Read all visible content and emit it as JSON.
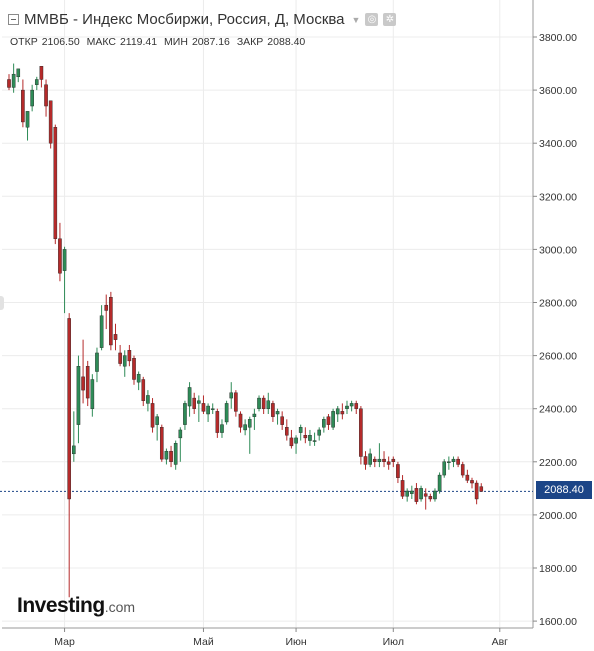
{
  "header": {
    "title": "ММВБ - Индекс Мосбиржи, Россия, Д, Москва",
    "icons": [
      "collapse-icon",
      "dropdown-icon",
      "settings-icon",
      "gear-icon"
    ]
  },
  "ohlc": {
    "open_label": "ОТКР",
    "open": "2106.50",
    "high_label": "МАКС",
    "high": "2119.41",
    "low_label": "МИН",
    "low": "2087.16",
    "close_label": "ЗАКР",
    "close": "2088.40"
  },
  "logo": {
    "main": "Investing",
    "suffix": ".com"
  },
  "current_price": "2088.40",
  "colors": {
    "up": "#2e8b57",
    "down": "#b52a2a",
    "price_line": "#1c4587",
    "grid": "#ececec"
  },
  "chart_data": {
    "type": "candlestick",
    "ylim": [
      1620,
      3910
    ],
    "y_ticks": [
      "3800.00",
      "3600.00",
      "3400.00",
      "3200.00",
      "3000.00",
      "2800.00",
      "2600.00",
      "2400.00",
      "2200.00",
      "2000.00",
      "1800.00",
      "1600.00"
    ],
    "x_ticks": [
      {
        "label": "Мар",
        "index": 12
      },
      {
        "label": "Май",
        "index": 42
      },
      {
        "label": "Июн",
        "index": 62
      },
      {
        "label": "Июл",
        "index": 83
      },
      {
        "label": "Авг",
        "index": 106
      }
    ],
    "current": 2088.4,
    "candles": [
      [
        3640,
        3660,
        3600,
        3610
      ],
      [
        3610,
        3700,
        3590,
        3660
      ],
      [
        3650,
        3680,
        3630,
        3680
      ],
      [
        3600,
        3640,
        3460,
        3480
      ],
      [
        3460,
        3520,
        3410,
        3520
      ],
      [
        3540,
        3620,
        3520,
        3600
      ],
      [
        3620,
        3650,
        3600,
        3640
      ],
      [
        3690,
        3690,
        3610,
        3640
      ],
      [
        3620,
        3640,
        3500,
        3540
      ],
      [
        3560,
        3560,
        3380,
        3400
      ],
      [
        3460,
        3470,
        3020,
        3040
      ],
      [
        3040,
        3100,
        2880,
        2910
      ],
      [
        2920,
        3010,
        2760,
        3000
      ],
      [
        2740,
        2760,
        1690,
        2060
      ],
      [
        2230,
        2390,
        2200,
        2260
      ],
      [
        2340,
        2600,
        2270,
        2560
      ],
      [
        2520,
        2660,
        2420,
        2470
      ],
      [
        2560,
        2580,
        2410,
        2440
      ],
      [
        2400,
        2530,
        2370,
        2510
      ],
      [
        2540,
        2630,
        2500,
        2610
      ],
      [
        2630,
        2790,
        2620,
        2750
      ],
      [
        2790,
        2830,
        2700,
        2770
      ],
      [
        2820,
        2840,
        2620,
        2640
      ],
      [
        2680,
        2720,
        2620,
        2660
      ],
      [
        2610,
        2640,
        2560,
        2570
      ],
      [
        2560,
        2620,
        2520,
        2600
      ],
      [
        2620,
        2640,
        2560,
        2580
      ],
      [
        2590,
        2600,
        2490,
        2510
      ],
      [
        2500,
        2540,
        2470,
        2530
      ],
      [
        2510,
        2520,
        2410,
        2430
      ],
      [
        2420,
        2470,
        2390,
        2450
      ],
      [
        2420,
        2440,
        2310,
        2330
      ],
      [
        2340,
        2380,
        2280,
        2370
      ],
      [
        2330,
        2340,
        2200,
        2210
      ],
      [
        2210,
        2250,
        2190,
        2240
      ],
      [
        2240,
        2260,
        2180,
        2200
      ],
      [
        2190,
        2280,
        2170,
        2270
      ],
      [
        2290,
        2330,
        2200,
        2320
      ],
      [
        2340,
        2430,
        2320,
        2420
      ],
      [
        2410,
        2500,
        2370,
        2480
      ],
      [
        2440,
        2460,
        2380,
        2400
      ],
      [
        2420,
        2450,
        2350,
        2430
      ],
      [
        2420,
        2450,
        2380,
        2390
      ],
      [
        2380,
        2420,
        2350,
        2410
      ],
      [
        2400,
        2420,
        2380,
        2400
      ],
      [
        2390,
        2400,
        2290,
        2310
      ],
      [
        2310,
        2360,
        2290,
        2340
      ],
      [
        2350,
        2430,
        2340,
        2420
      ],
      [
        2440,
        2500,
        2400,
        2460
      ],
      [
        2460,
        2470,
        2370,
        2390
      ],
      [
        2380,
        2390,
        2310,
        2330
      ],
      [
        2320,
        2360,
        2300,
        2340
      ],
      [
        2330,
        2370,
        2230,
        2360
      ],
      [
        2370,
        2400,
        2320,
        2380
      ],
      [
        2400,
        2450,
        2390,
        2440
      ],
      [
        2440,
        2450,
        2380,
        2400
      ],
      [
        2400,
        2460,
        2380,
        2430
      ],
      [
        2420,
        2430,
        2350,
        2370
      ],
      [
        2380,
        2400,
        2340,
        2390
      ],
      [
        2370,
        2390,
        2320,
        2340
      ],
      [
        2330,
        2360,
        2280,
        2300
      ],
      [
        2290,
        2320,
        2250,
        2260
      ],
      [
        2270,
        2300,
        2230,
        2290
      ],
      [
        2310,
        2340,
        2280,
        2330
      ],
      [
        2300,
        2330,
        2270,
        2290
      ],
      [
        2280,
        2320,
        2260,
        2300
      ],
      [
        2280,
        2310,
        2260,
        2280
      ],
      [
        2300,
        2330,
        2280,
        2320
      ],
      [
        2330,
        2370,
        2310,
        2360
      ],
      [
        2370,
        2380,
        2320,
        2340
      ],
      [
        2330,
        2400,
        2320,
        2390
      ],
      [
        2380,
        2410,
        2350,
        2400
      ],
      [
        2390,
        2420,
        2360,
        2380
      ],
      [
        2400,
        2430,
        2380,
        2410
      ],
      [
        2410,
        2430,
        2390,
        2420
      ],
      [
        2420,
        2430,
        2380,
        2400
      ],
      [
        2400,
        2410,
        2190,
        2220
      ],
      [
        2220,
        2240,
        2170,
        2190
      ],
      [
        2190,
        2250,
        2180,
        2230
      ],
      [
        2210,
        2220,
        2180,
        2200
      ],
      [
        2200,
        2270,
        2180,
        2210
      ],
      [
        2210,
        2240,
        2180,
        2200
      ],
      [
        2200,
        2220,
        2170,
        2190
      ],
      [
        2210,
        2220,
        2180,
        2200
      ],
      [
        2190,
        2200,
        2120,
        2140
      ],
      [
        2130,
        2150,
        2060,
        2070
      ],
      [
        2070,
        2100,
        2050,
        2090
      ],
      [
        2080,
        2110,
        2060,
        2090
      ],
      [
        2100,
        2120,
        2040,
        2050
      ],
      [
        2060,
        2110,
        2050,
        2100
      ],
      [
        2080,
        2100,
        2020,
        2070
      ],
      [
        2070,
        2080,
        2050,
        2060
      ],
      [
        2060,
        2100,
        2050,
        2090
      ],
      [
        2090,
        2160,
        2080,
        2150
      ],
      [
        2150,
        2210,
        2140,
        2200
      ],
      [
        2200,
        2220,
        2170,
        2200
      ],
      [
        2200,
        2220,
        2180,
        2210
      ],
      [
        2210,
        2220,
        2180,
        2190
      ],
      [
        2190,
        2200,
        2140,
        2150
      ],
      [
        2150,
        2170,
        2120,
        2130
      ],
      [
        2130,
        2140,
        2100,
        2120
      ],
      [
        2120,
        2130,
        2040,
        2060
      ],
      [
        2106.5,
        2119.41,
        2087.16,
        2088.4
      ]
    ]
  }
}
